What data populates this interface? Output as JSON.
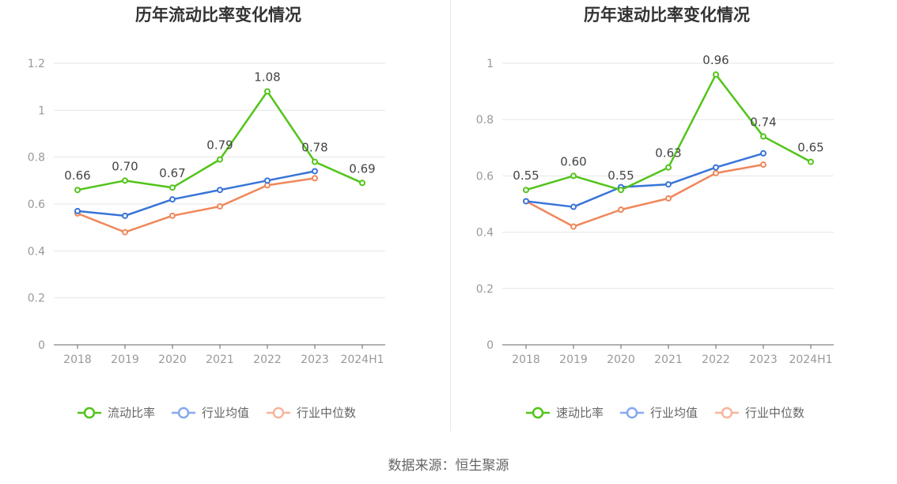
{
  "colors": {
    "primary": "#52c41a",
    "industry_avg": "#3874d8",
    "industry_median": "#f0875a",
    "legend_avg": "#86a9ee",
    "legend_median": "#f7b59c",
    "axis": "#999999",
    "grid": "#e6e6e6",
    "title": "#333333"
  },
  "chart_data": [
    {
      "type": "line",
      "title": "历年流动比率变化情况",
      "categories": [
        "2018",
        "2019",
        "2020",
        "2021",
        "2022",
        "2023",
        "2024H1"
      ],
      "ylim": [
        0,
        1.2
      ],
      "yticks": [
        "0",
        "0.2",
        "0.4",
        "0.6",
        "0.8",
        "1",
        "1.2"
      ],
      "grid": true,
      "legend_position": "bottom",
      "series": [
        {
          "name": "流动比率",
          "values": [
            0.66,
            0.7,
            0.67,
            0.79,
            1.08,
            0.78,
            0.69
          ],
          "labels": [
            "0.66",
            "0.70",
            "0.67",
            "0.79",
            "1.08",
            "0.78",
            "0.69"
          ]
        },
        {
          "name": "行业均值",
          "values": [
            0.57,
            0.55,
            0.62,
            0.66,
            0.7,
            0.74,
            null
          ]
        },
        {
          "name": "行业中位数",
          "values": [
            0.56,
            0.48,
            0.55,
            0.59,
            0.68,
            0.71,
            null
          ]
        }
      ]
    },
    {
      "type": "line",
      "title": "历年速动比率变化情况",
      "categories": [
        "2018",
        "2019",
        "2020",
        "2021",
        "2022",
        "2023",
        "2024H1"
      ],
      "ylim": [
        0,
        1
      ],
      "yticks": [
        "0",
        "0.2",
        "0.4",
        "0.6",
        "0.8",
        "1"
      ],
      "grid": true,
      "legend_position": "bottom",
      "series": [
        {
          "name": "速动比率",
          "values": [
            0.55,
            0.6,
            0.55,
            0.63,
            0.96,
            0.74,
            0.65
          ],
          "labels": [
            "0.55",
            "0.60",
            "0.55",
            "0.63",
            "0.96",
            "0.74",
            "0.65"
          ]
        },
        {
          "name": "行业均值",
          "values": [
            0.51,
            0.49,
            0.56,
            0.57,
            0.63,
            0.68,
            null
          ]
        },
        {
          "name": "行业中位数",
          "values": [
            0.51,
            0.42,
            0.48,
            0.52,
            0.61,
            0.64,
            null
          ]
        }
      ]
    }
  ],
  "footer": {
    "source": "数据来源：恒生聚源"
  }
}
